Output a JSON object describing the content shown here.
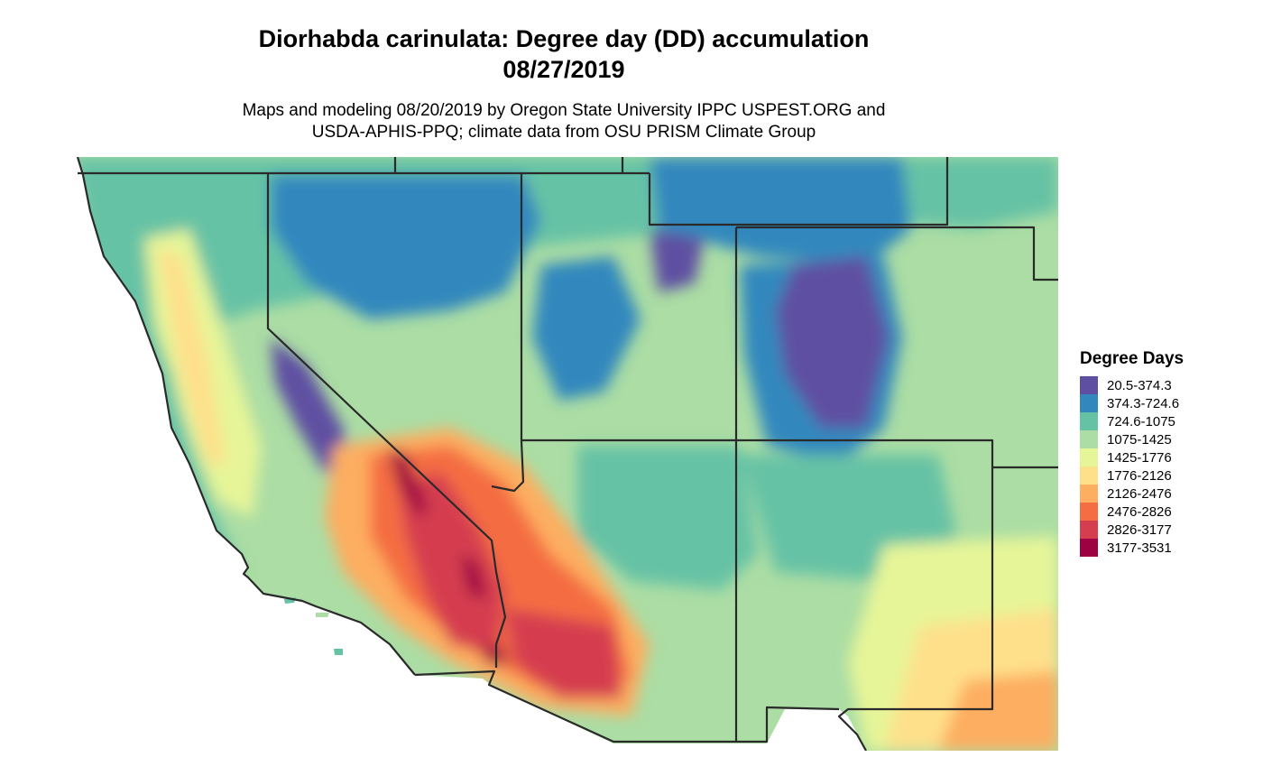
{
  "title_line1": "Diorhabda carinulata: Degree day (DD) accumulation",
  "title_line2": "08/27/2019",
  "subtitle_line1": "Maps and modeling 08/20/2019 by Oregon State University IPPC USPEST.ORG and",
  "subtitle_line2": "USDA-APHIS-PPQ; climate data from OSU PRISM Climate Group",
  "legend": {
    "title": "Degree Days",
    "items": [
      {
        "label": "20.5-374.3",
        "color": "#5e4fa2"
      },
      {
        "label": "374.3-724.6",
        "color": "#3288bd"
      },
      {
        "label": "724.6-1075",
        "color": "#66c2a5"
      },
      {
        "label": "1075-1425",
        "color": "#abdda4"
      },
      {
        "label": "1425-1776",
        "color": "#e6f598"
      },
      {
        "label": "1776-2126",
        "color": "#fee08b"
      },
      {
        "label": "2126-2476",
        "color": "#fdae61"
      },
      {
        "label": "2476-2826",
        "color": "#f46d43"
      },
      {
        "label": "2826-3177",
        "color": "#d53e4f"
      },
      {
        "label": "3177-3531",
        "color": "#9e0142"
      }
    ]
  },
  "map": {
    "region": "Southwestern United States",
    "states_shown": [
      "California",
      "Nevada",
      "Utah",
      "Arizona",
      "Colorado",
      "New Mexico"
    ],
    "ocean_color": "#ffffff",
    "border_color": "#2a2a2a"
  }
}
